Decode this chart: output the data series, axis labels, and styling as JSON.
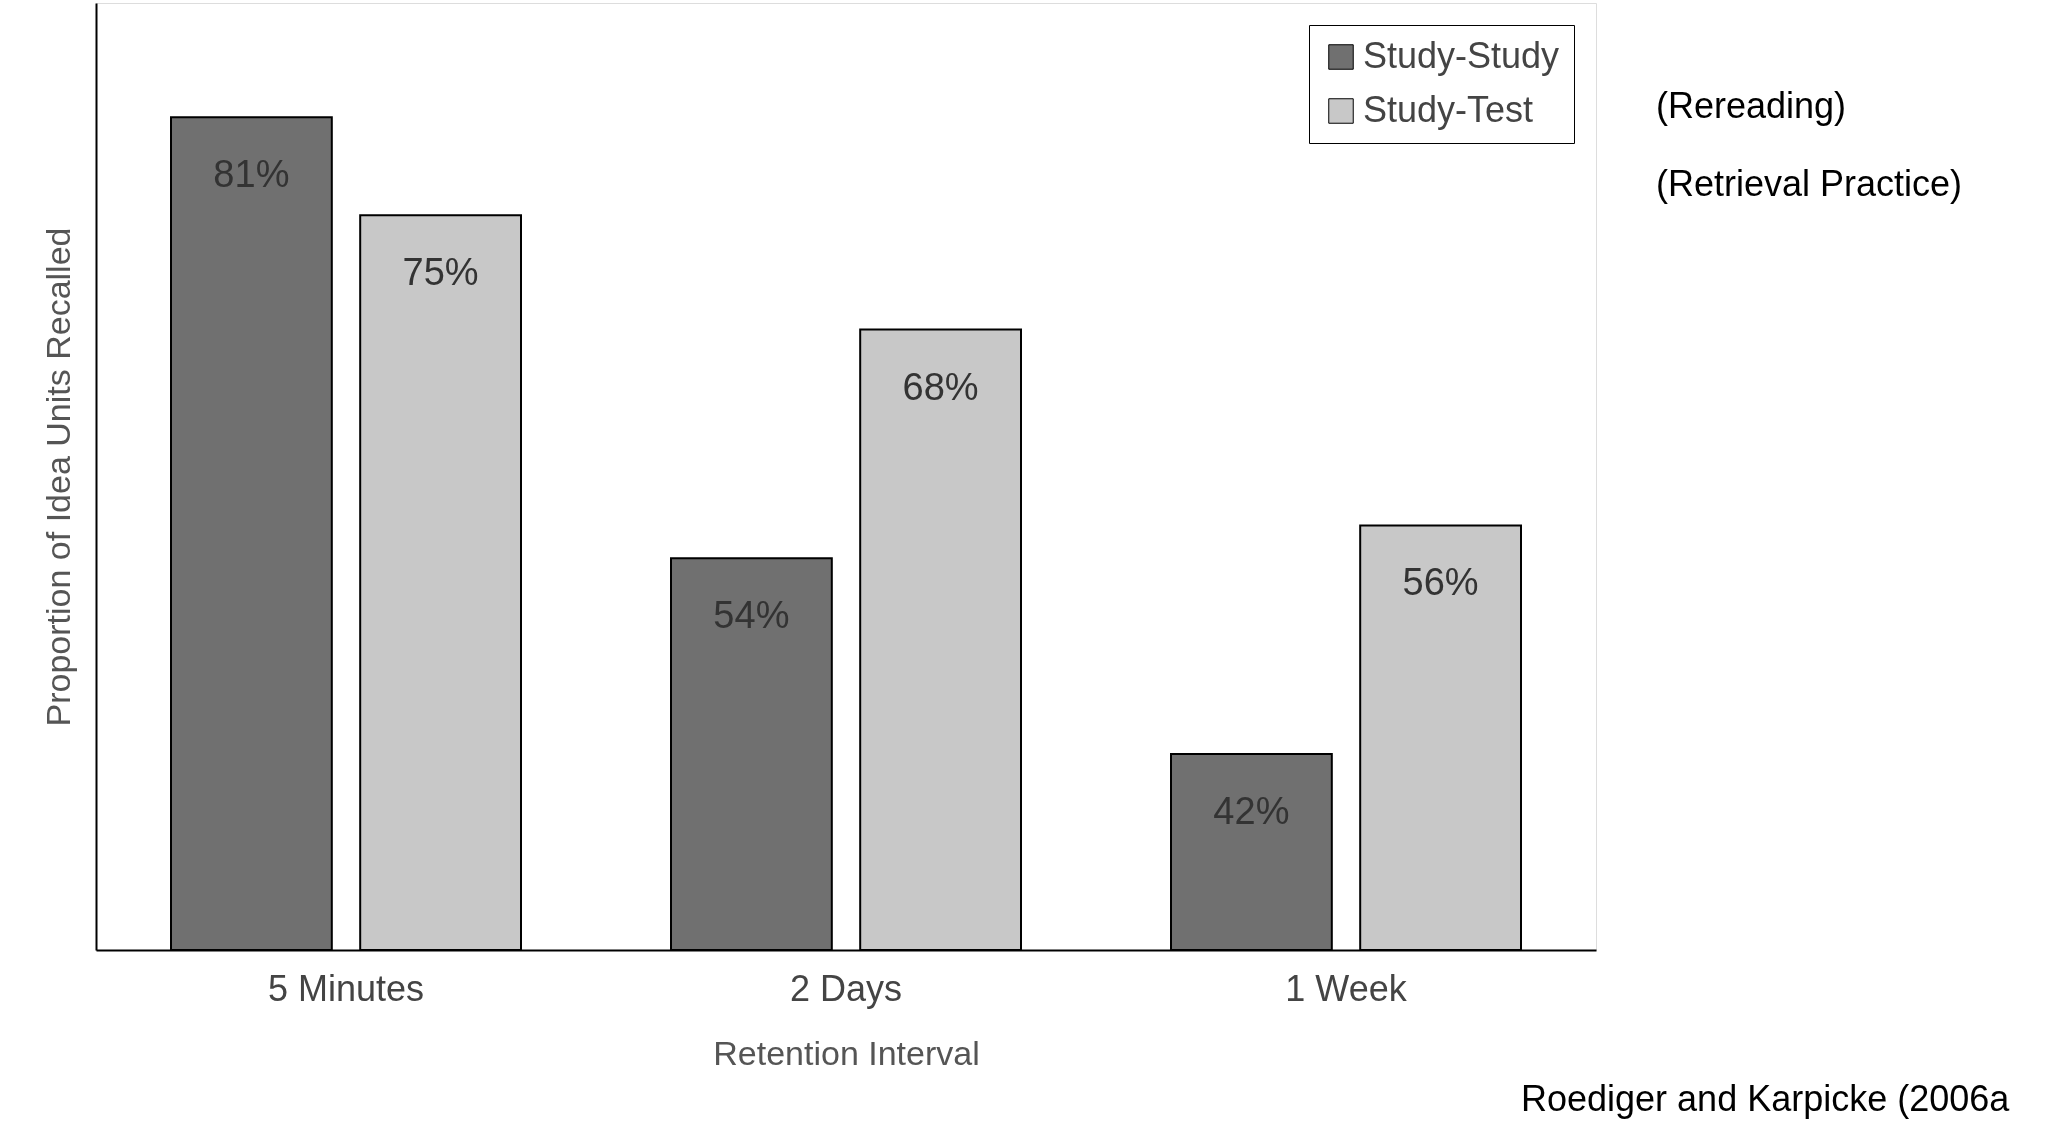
{
  "chart_data": {
    "type": "bar",
    "xlabel": "Retention Interval",
    "ylabel": "Proportion of Idea Units Recalled",
    "categories": [
      "5 Minutes",
      "2 Days",
      "1 Week"
    ],
    "series": [
      {
        "name": "Study-Study",
        "color": "#707070",
        "values": [
          81,
          54,
          42
        ],
        "value_labels": [
          "81%",
          "54%",
          "42%"
        ]
      },
      {
        "name": "Study-Test",
        "color": "#c8c8c8",
        "values": [
          75,
          68,
          56
        ],
        "value_labels": [
          "75%",
          "68%",
          "56%"
        ]
      }
    ],
    "ylim": [
      30,
      88
    ],
    "grid": false,
    "legend": "top right",
    "annotations": [
      "(Rereading)",
      "(Retrieval Practice)",
      "Roediger and Karpicke (2006a"
    ]
  }
}
